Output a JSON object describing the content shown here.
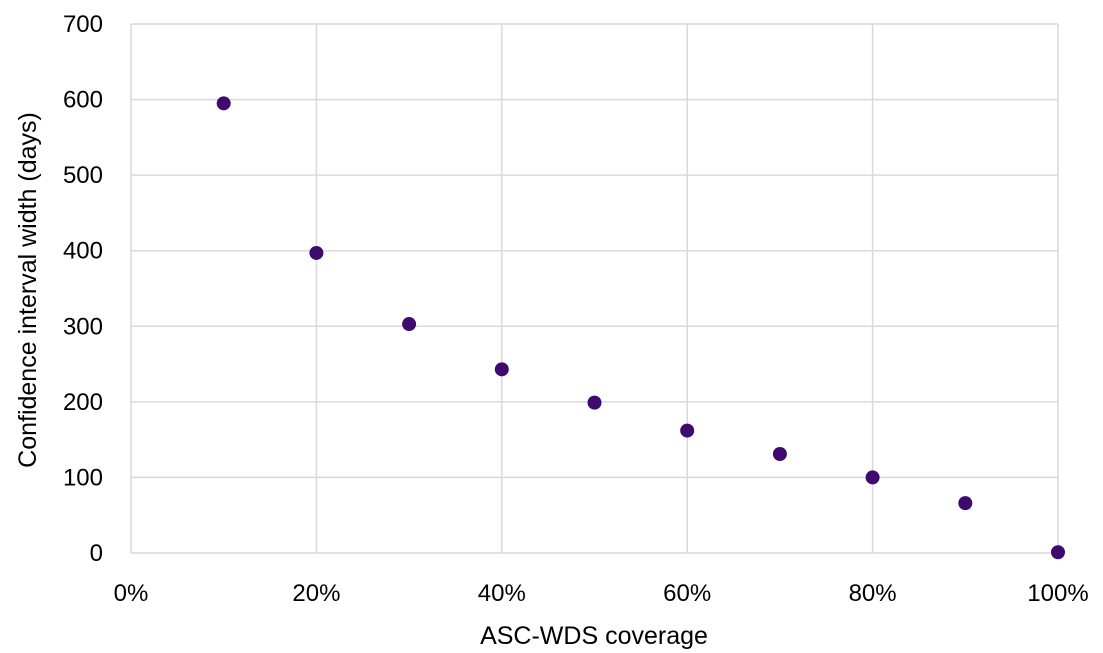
{
  "chart_data": {
    "type": "scatter",
    "title": "",
    "xlabel": "ASC-WDS coverage",
    "ylabel": "Confidence interval width (days)",
    "xlim": [
      0,
      100
    ],
    "ylim": [
      0,
      700
    ],
    "x_ticks": [
      0,
      20,
      40,
      60,
      80,
      100
    ],
    "x_tick_labels": [
      "0%",
      "20%",
      "40%",
      "60%",
      "80%",
      "100%"
    ],
    "y_ticks": [
      0,
      100,
      200,
      300,
      400,
      500,
      600,
      700
    ],
    "y_tick_labels": [
      "0",
      "100",
      "200",
      "300",
      "400",
      "500",
      "600",
      "700"
    ],
    "grid": true,
    "legend": "none",
    "marker_color": "#3f0a6e",
    "series": [
      {
        "x": [
          10,
          20,
          30,
          40,
          50,
          60,
          70,
          80,
          90,
          100
        ],
        "y": [
          595,
          397,
          303,
          243,
          199,
          162,
          131,
          100,
          66,
          1
        ]
      }
    ]
  }
}
